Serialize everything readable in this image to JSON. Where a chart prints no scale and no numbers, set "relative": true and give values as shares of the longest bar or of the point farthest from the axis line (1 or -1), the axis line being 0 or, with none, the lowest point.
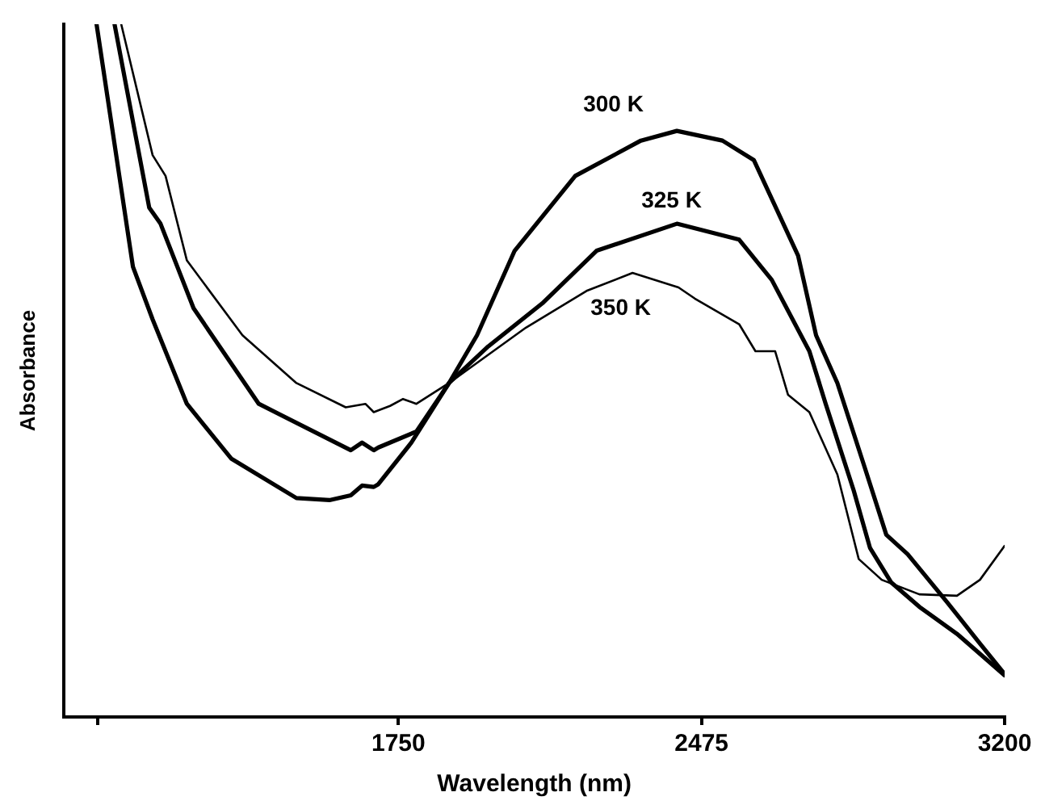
{
  "chart_data": {
    "type": "line",
    "relative": true,
    "xlabel": "Wavelength (nm)",
    "ylabel": "Absorbance",
    "xlim": [
      950,
      3200
    ],
    "xticks": [
      {
        "value": 1030,
        "label": null
      },
      1750,
      2475,
      3200
    ],
    "grid": false,
    "legend": false,
    "marker": "none",
    "line_style": "solid",
    "series": [
      {
        "name": "300 K",
        "color": "#000000",
        "x": [
          1028,
          1115,
          1162,
          1244,
          1350,
          1506,
          1585,
          1636,
          1663,
          1691,
          1702,
          1781,
          1871,
          1938,
          2028,
          2173,
          2330,
          2416,
          2525,
          2600,
          2706,
          2749,
          2800,
          2866,
          2917,
          2968,
          3062,
          3141,
          3200
        ],
        "values": [
          1.0,
          0.65,
          0.574,
          0.452,
          0.373,
          0.316,
          0.313,
          0.32,
          0.334,
          0.332,
          0.336,
          0.396,
          0.482,
          0.551,
          0.673,
          0.781,
          0.832,
          0.846,
          0.832,
          0.804,
          0.666,
          0.551,
          0.482,
          0.359,
          0.263,
          0.235,
          0.166,
          0.106,
          0.062
        ]
      },
      {
        "name": "325 K",
        "color": "#000000",
        "x": [
          1071,
          1154,
          1181,
          1260,
          1416,
          1636,
          1663,
          1691,
          1702,
          1793,
          1871,
          1965,
          2094,
          2224,
          2416,
          2565,
          2643,
          2733,
          2772,
          2839,
          2878,
          2929,
          2996,
          3086,
          3200
        ],
        "values": [
          1.0,
          0.735,
          0.712,
          0.59,
          0.452,
          0.385,
          0.396,
          0.385,
          0.389,
          0.412,
          0.482,
          0.535,
          0.597,
          0.673,
          0.712,
          0.689,
          0.631,
          0.528,
          0.452,
          0.327,
          0.244,
          0.194,
          0.159,
          0.12,
          0.06
        ]
      },
      {
        "name": "350 K",
        "color": "#000000",
        "x": [
          1087,
          1162,
          1193,
          1244,
          1377,
          1506,
          1624,
          1671,
          1691,
          1730,
          1761,
          1793,
          1871,
          2055,
          2200,
          2310,
          2420,
          2459,
          2565,
          2604,
          2651,
          2682,
          2733,
          2800,
          2851,
          2906,
          2996,
          3086,
          3141,
          3200
        ],
        "values": [
          1.0,
          0.811,
          0.781,
          0.659,
          0.551,
          0.482,
          0.447,
          0.452,
          0.44,
          0.449,
          0.459,
          0.452,
          0.482,
          0.562,
          0.615,
          0.641,
          0.62,
          0.604,
          0.567,
          0.528,
          0.528,
          0.465,
          0.44,
          0.35,
          0.228,
          0.198,
          0.177,
          0.175,
          0.198,
          0.247
        ]
      }
    ]
  }
}
